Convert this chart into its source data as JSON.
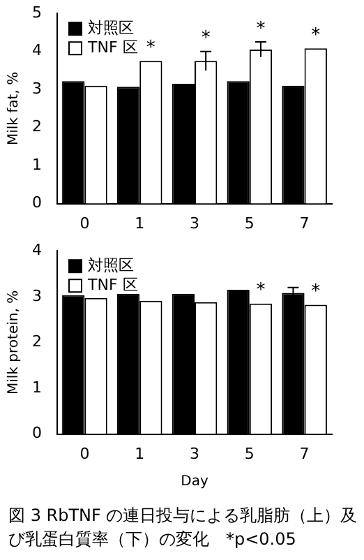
{
  "chart_data": [
    {
      "type": "bar",
      "ylabel": "Milk fat, %",
      "categories": [
        "0",
        "1",
        "3",
        "5",
        "7"
      ],
      "ylim": [
        0,
        5
      ],
      "yticks": [
        0,
        1,
        2,
        3,
        4,
        5
      ],
      "grid": false,
      "legend": "top left",
      "series": [
        {
          "name": "対照区",
          "color": "#000000",
          "values": [
            3.22,
            3.07,
            3.15,
            3.22,
            3.1
          ]
        },
        {
          "name": "TNF 区",
          "color": "#ffffff",
          "values": [
            3.1,
            3.75,
            3.75,
            4.05,
            4.08
          ],
          "errors": [
            null,
            null,
            0.25,
            0.2,
            null
          ]
        }
      ],
      "annotations": [
        {
          "text": "*",
          "x": "1",
          "y": 3.75
        },
        {
          "text": "*",
          "x": "3",
          "y": 3.75
        },
        {
          "text": "*",
          "x": "5",
          "y": 4.05
        },
        {
          "text": "*",
          "x": "7",
          "y": 4.08
        }
      ]
    },
    {
      "type": "bar",
      "ylabel": "Milk protein, %",
      "xlabel": "Day",
      "categories": [
        "0",
        "1",
        "3",
        "5",
        "7"
      ],
      "ylim": [
        0,
        4
      ],
      "yticks": [
        0,
        1,
        2,
        3,
        4
      ],
      "grid": false,
      "legend": "top left",
      "series": [
        {
          "name": "対照区",
          "color": "#000000",
          "values": [
            3.03,
            3.06,
            3.06,
            3.15,
            3.08
          ],
          "errors": [
            null,
            null,
            null,
            null,
            0.12
          ]
        },
        {
          "name": "TNF 区",
          "color": "#ffffff",
          "values": [
            2.97,
            2.91,
            2.88,
            2.85,
            2.82
          ]
        }
      ],
      "annotations": [
        {
          "text": "*",
          "x": "5",
          "y": 2.85
        },
        {
          "text": "*",
          "x": "7",
          "y": 2.82
        },
        "図 3 RbTNF の連日投与による乳脂肪（上）及び乳蛋白質率（下）の変化　*p<0.05"
      ]
    }
  ]
}
